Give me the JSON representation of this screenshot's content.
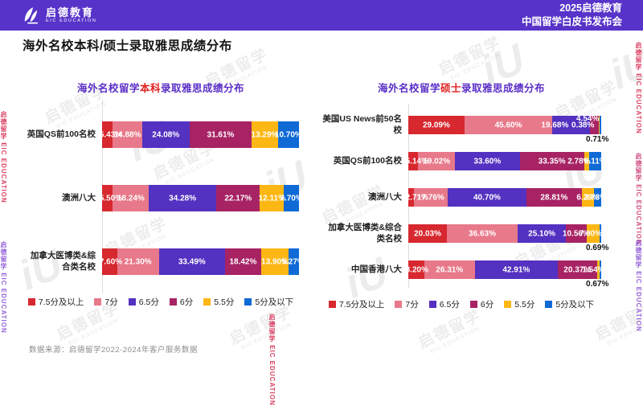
{
  "header": {
    "logo_title": "启德教育",
    "logo_subtitle": "EIC EDUCATION",
    "event_line1": "2025启德教育",
    "event_line2": "中国留学白皮书发布会"
  },
  "page_title": "海外名校本科/硕士录取雅思成绩分布",
  "source_note": "数据来源：启德留学2022-2024年客户服务数据",
  "watermark": {
    "cn": "启德留学",
    "en": "EIC EDUCATION",
    "logo": "iU"
  },
  "colors": {
    "header_bg": "#5733c9",
    "title_purple": "#5a2ec6",
    "title_red": "#e02222",
    "axis_line": "#dcdcdc",
    "series": [
      "#d7282f",
      "#e8798a",
      "#5331c1",
      "#a72364",
      "#fdb714",
      "#0f6ad6"
    ]
  },
  "legend": {
    "labels": [
      "7.5分及以上",
      "7分",
      "6.5分",
      "6分",
      "5.5分",
      "5分及以下"
    ]
  },
  "chart_data": [
    {
      "type": "bar",
      "subtype": "horizontal-stacked",
      "unit": "%",
      "xlim": [
        0,
        100
      ],
      "title_parts": [
        {
          "text": "海外名校留学",
          "color": "title_purple"
        },
        {
          "text": "本科",
          "color": "title_red"
        },
        {
          "text": "录取雅思成绩分布",
          "color": "title_purple"
        }
      ],
      "series_labels": [
        "7.5分及以上",
        "7分",
        "6.5分",
        "6分",
        "5.5分",
        "5分及以下"
      ],
      "rows": [
        {
          "label": "英国QS前100名校",
          "values": [
            5.43,
            14.88,
            24.08,
            31.61,
            13.29,
            10.7
          ],
          "overrides": {}
        },
        {
          "label": "澳洲八大",
          "values": [
            5.5,
            18.24,
            34.28,
            22.17,
            12.11,
            7.7
          ],
          "overrides": {}
        },
        {
          "label": "加拿大医博类&综合类名校",
          "values": [
            7.6,
            21.3,
            33.49,
            18.42,
            13.9,
            5.27
          ],
          "overrides": {}
        }
      ]
    },
    {
      "type": "bar",
      "subtype": "horizontal-stacked",
      "unit": "%",
      "xlim": [
        0,
        100
      ],
      "title_parts": [
        {
          "text": "海外名校留学",
          "color": "title_purple"
        },
        {
          "text": "硕士",
          "color": "title_red"
        },
        {
          "text": "录取雅思成绩分布",
          "color": "title_purple"
        }
      ],
      "series_labels": [
        "7.5分及以上",
        "7分",
        "6.5分",
        "6分",
        "5.5分",
        "5分及以下"
      ],
      "rows": [
        {
          "label": "美国US News前50名校",
          "values": [
            29.09,
            45.6,
            19.68,
            4.54,
            0.38,
            0.71
          ],
          "overrides": {
            "2": {
              "x": 76
            },
            "3": {
              "x": 93,
              "pos": "up"
            },
            "4": {
              "x": 90.5
            },
            "5": {
              "x": 98,
              "pos": "below"
            }
          }
        },
        {
          "label": "英国QS前100名校",
          "values": [
            5.14,
            19.02,
            33.6,
            33.35,
            2.78,
            6.11
          ],
          "overrides": {
            "4": {
              "x": 88.5
            },
            "5": {
              "x": 97
            }
          }
        },
        {
          "label": "澳洲八大",
          "values": [
            2.71,
            17.76,
            40.7,
            28.81,
            6.29,
            3.73
          ],
          "overrides": {
            "5": {
              "x": 97
            }
          }
        },
        {
          "label": "加拿大医博类&综合类名校",
          "values": [
            20.03,
            36.63,
            25.1,
            10.56,
            7.0,
            0.69
          ],
          "overrides": {
            "4": {
              "x": 94.5
            },
            "5": {
              "x": 98,
              "pos": "below"
            }
          }
        },
        {
          "label": "中国香港八大",
          "values": [
            8.2,
            26.31,
            42.91,
            20.37,
            1.54,
            0.67
          ],
          "overrides": {
            "4": {
              "x": 96
            },
            "5": {
              "x": 98,
              "pos": "below"
            }
          }
        }
      ]
    }
  ]
}
